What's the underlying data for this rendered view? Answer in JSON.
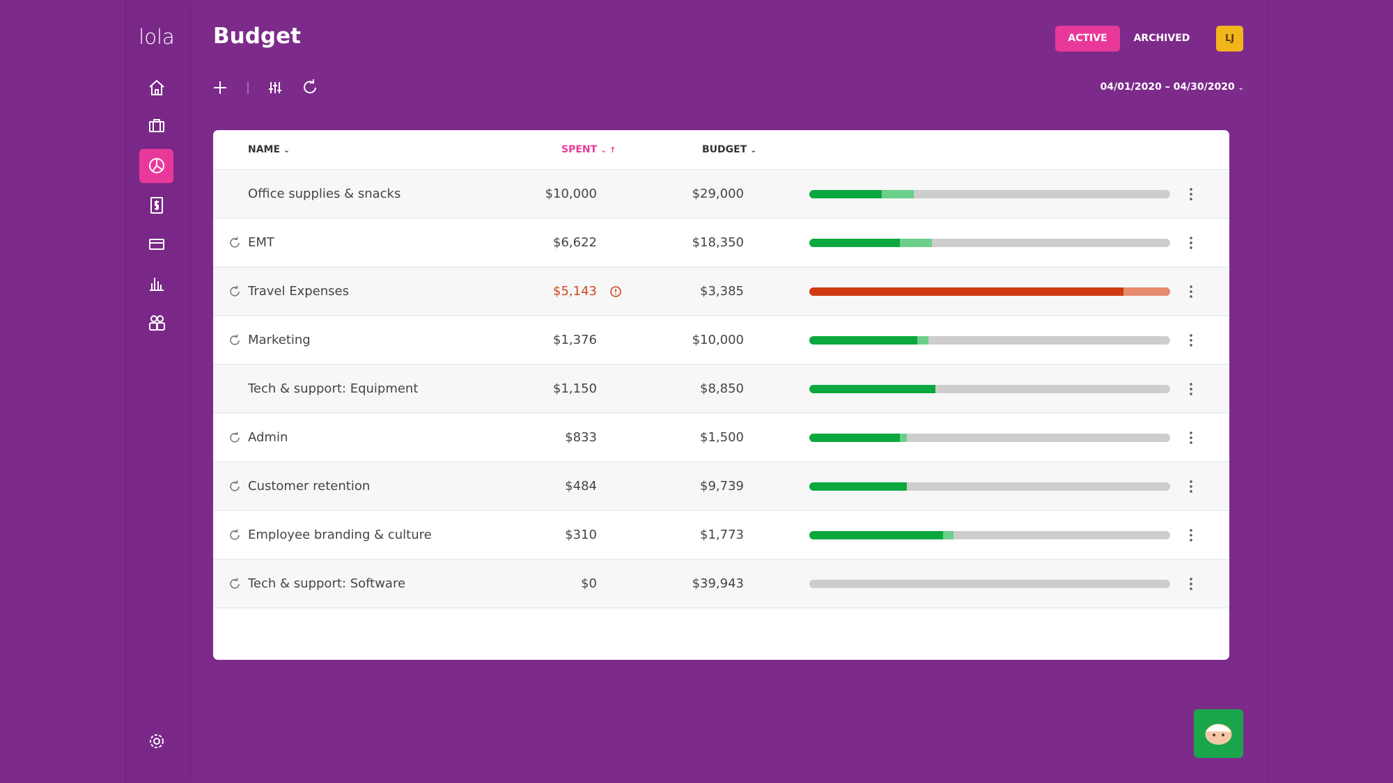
{
  "brand": "lola",
  "header": {
    "title": "Budget",
    "tabs": [
      "ACTIVE",
      "ARCHIVED"
    ],
    "avatar": "LJ",
    "date_range": "04/01/2020 – 04/30/2020"
  },
  "table": {
    "columns": [
      "NAME",
      "SPENT",
      "BUDGET"
    ],
    "rows": [
      {
        "name": "Office supplies & snacks",
        "spent": "$10,000",
        "budget": "$29,000",
        "recurring": false,
        "over": false,
        "bar": [
          20,
          9
        ]
      },
      {
        "name": "EMT",
        "spent": "$6,622",
        "budget": "$18,350",
        "recurring": true,
        "over": false,
        "bar": [
          25,
          9
        ]
      },
      {
        "name": "Travel Expenses",
        "spent": "$5,143",
        "budget": "$3,385",
        "recurring": true,
        "over": true,
        "bar": [
          87,
          13
        ]
      },
      {
        "name": "Marketing",
        "spent": "$1,376",
        "budget": "$10,000",
        "recurring": true,
        "over": false,
        "bar": [
          30,
          3
        ]
      },
      {
        "name": "Tech & support: Equipment",
        "spent": "$1,150",
        "budget": "$8,850",
        "recurring": false,
        "over": false,
        "bar": [
          35,
          0
        ]
      },
      {
        "name": "Admin",
        "spent": "$833",
        "budget": "$1,500",
        "recurring": true,
        "over": false,
        "bar": [
          25,
          2
        ]
      },
      {
        "name": "Customer retention",
        "spent": "$484",
        "budget": "$9,739",
        "recurring": true,
        "over": false,
        "bar": [
          27,
          0
        ]
      },
      {
        "name": "Employee branding & culture",
        "spent": "$310",
        "budget": "$1,773",
        "recurring": true,
        "over": false,
        "bar": [
          37,
          3
        ]
      },
      {
        "name": "Tech & support: Software",
        "spent": "$0",
        "budget": "$39,943",
        "recurring": true,
        "over": false,
        "bar": [
          0,
          0
        ]
      }
    ]
  },
  "colors": {
    "spent": "#0aa83e",
    "pending": "#6ccf8a",
    "over": "#cf3a11",
    "over_pending": "#e58a6d",
    "track": "#cdcdcd"
  }
}
